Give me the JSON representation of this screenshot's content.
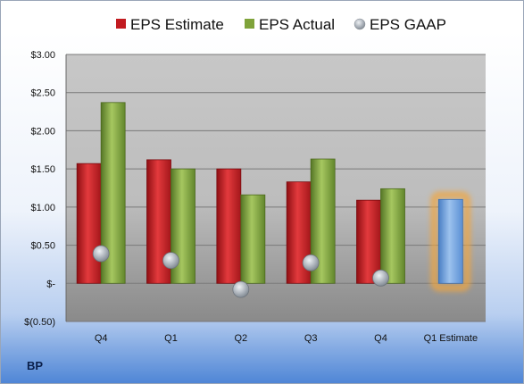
{
  "company": "BP",
  "legend": [
    {
      "label": "EPS Estimate",
      "color": "#c21b20"
    },
    {
      "label": "EPS Actual",
      "color": "#7fa33a"
    },
    {
      "label": "EPS GAAP",
      "color": "#9aa3ad"
    }
  ],
  "chart_data": {
    "type": "bar",
    "categories": [
      "Q4",
      "Q1",
      "Q2",
      "Q3",
      "Q4",
      "Q1 Estimate"
    ],
    "series": [
      {
        "name": "EPS Estimate",
        "values": [
          1.57,
          1.62,
          1.5,
          1.33,
          1.09,
          null
        ]
      },
      {
        "name": "EPS Actual",
        "values": [
          2.37,
          1.5,
          1.16,
          1.63,
          1.24,
          null
        ]
      },
      {
        "name": "EPS GAAP",
        "values": [
          0.39,
          0.3,
          -0.08,
          0.27,
          0.07,
          null
        ]
      }
    ],
    "forecast": {
      "category": "Q1 Estimate",
      "value": 1.1,
      "color": "#6fa0dc",
      "highlight": "#f0a640"
    },
    "ylim": [
      -0.5,
      3.0
    ],
    "yticks": [
      {
        "value": 3.0,
        "label": "$3.00"
      },
      {
        "value": 2.5,
        "label": "$2.50"
      },
      {
        "value": 2.0,
        "label": "$2.00"
      },
      {
        "value": 1.5,
        "label": "$1.50"
      },
      {
        "value": 1.0,
        "label": "$1.00"
      },
      {
        "value": 0.5,
        "label": "$0.50"
      },
      {
        "value": 0.0,
        "label": "$-"
      },
      {
        "value": -0.5,
        "label": "$(0.50)"
      }
    ],
    "grid": true,
    "legend_position": "top"
  }
}
